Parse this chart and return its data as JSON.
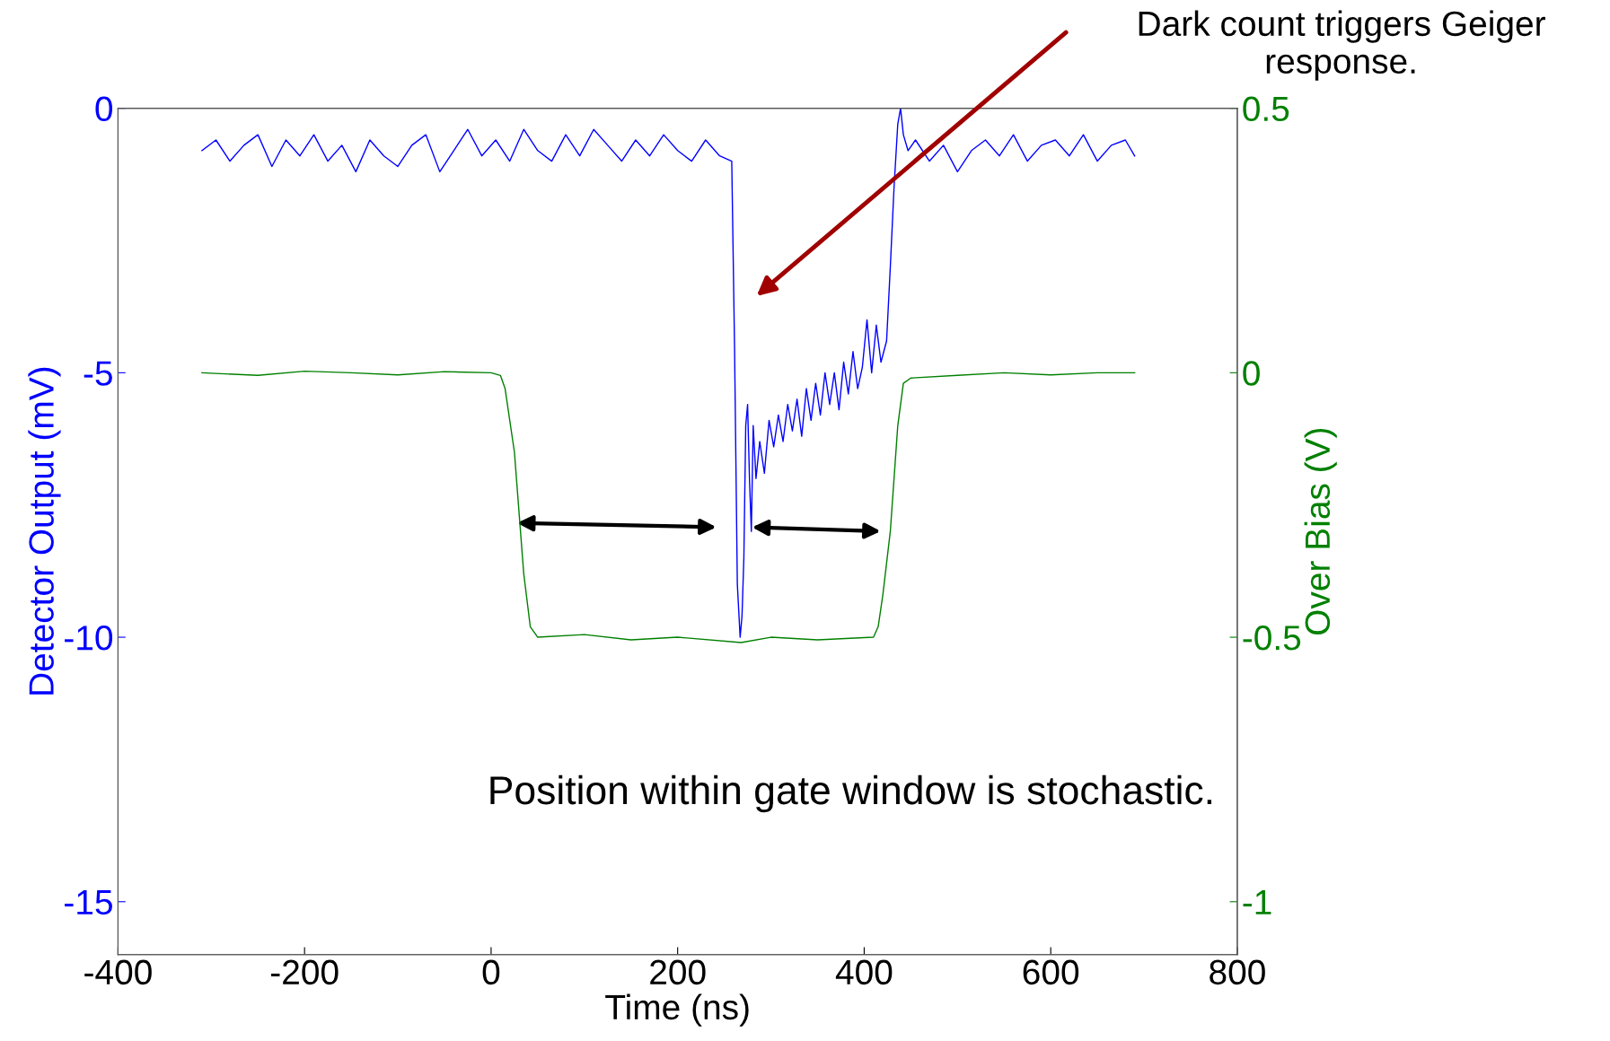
{
  "chart_data": {
    "type": "line",
    "xlabel": "Time (ns)",
    "ylabel": "Detector Output (mV)",
    "y2label": "Over Bias (V)",
    "xlim": [
      -400,
      800
    ],
    "xticks": [
      -400,
      -200,
      0,
      200,
      400,
      600,
      800
    ],
    "ylim": [
      -16,
      0
    ],
    "yticks": [
      -15,
      -10,
      -5,
      0
    ],
    "y2lim": [
      -1.1,
      0.5
    ],
    "y2ticks": [
      -1,
      -0.5,
      0,
      0.5
    ],
    "grid": false,
    "legend": false,
    "marker": "none",
    "line_style": "solid",
    "series": [
      {
        "color": "#0000ff",
        "axis": "y",
        "x": [
          -310,
          -295,
          -280,
          -265,
          -250,
          -235,
          -220,
          -205,
          -190,
          -175,
          -160,
          -145,
          -130,
          -115,
          -100,
          -85,
          -70,
          -55,
          -40,
          -25,
          -10,
          5,
          20,
          35,
          50,
          65,
          80,
          95,
          110,
          125,
          140,
          155,
          170,
          185,
          200,
          215,
          230,
          245,
          258,
          261,
          264,
          267,
          269,
          271,
          273,
          275,
          277,
          279,
          281,
          284,
          288,
          293,
          298,
          303,
          308,
          313,
          318,
          323,
          328,
          333,
          338,
          343,
          348,
          353,
          358,
          363,
          368,
          373,
          378,
          383,
          388,
          393,
          398,
          403,
          408,
          413,
          418,
          421,
          424,
          428,
          432,
          436,
          439,
          442,
          447,
          455,
          470,
          485,
          500,
          515,
          530,
          545,
          560,
          575,
          590,
          605,
          620,
          635,
          650,
          665,
          680,
          690
        ],
        "values": [
          -0.8,
          -0.6,
          -1.0,
          -0.7,
          -0.5,
          -1.1,
          -0.6,
          -0.9,
          -0.5,
          -1.0,
          -0.7,
          -1.2,
          -0.6,
          -0.9,
          -1.1,
          -0.7,
          -0.5,
          -1.2,
          -0.8,
          -0.4,
          -0.9,
          -0.6,
          -1.0,
          -0.4,
          -0.8,
          -1.0,
          -0.5,
          -0.9,
          -0.4,
          -0.7,
          -1.0,
          -0.6,
          -0.9,
          -0.5,
          -0.8,
          -1.0,
          -0.6,
          -0.9,
          -1.0,
          -4.5,
          -9.0,
          -10.0,
          -9.6,
          -8.5,
          -6.0,
          -5.6,
          -7.0,
          -8.0,
          -6.0,
          -7.0,
          -6.3,
          -6.9,
          -5.9,
          -6.4,
          -5.8,
          -6.3,
          -5.6,
          -6.1,
          -5.5,
          -6.2,
          -5.3,
          -5.9,
          -5.2,
          -5.8,
          -5.0,
          -5.6,
          -5.0,
          -5.7,
          -4.8,
          -5.4,
          -4.6,
          -5.3,
          -4.9,
          -4.0,
          -5.0,
          -4.1,
          -4.8,
          -4.6,
          -4.4,
          -3.0,
          -1.5,
          -0.3,
          0.0,
          -0.5,
          -0.8,
          -0.6,
          -1.0,
          -0.7,
          -1.2,
          -0.8,
          -0.6,
          -0.9,
          -0.5,
          -1.0,
          -0.7,
          -0.6,
          -0.9,
          -0.5,
          -1.0,
          -0.7,
          -0.6,
          -0.9
        ]
      },
      {
        "color": "#008000",
        "axis": "y2",
        "x": [
          -310,
          -250,
          -200,
          -150,
          -100,
          -50,
          0,
          10,
          15,
          25,
          35,
          42,
          50,
          100,
          150,
          200,
          268,
          300,
          350,
          410,
          415,
          420,
          428,
          436,
          442,
          450,
          500,
          550,
          600,
          650,
          690
        ],
        "values": [
          0.0,
          -0.005,
          0.003,
          0.0,
          -0.004,
          0.002,
          0.0,
          -0.005,
          -0.03,
          -0.15,
          -0.38,
          -0.48,
          -0.5,
          -0.495,
          -0.505,
          -0.5,
          -0.51,
          -0.5,
          -0.505,
          -0.5,
          -0.48,
          -0.42,
          -0.3,
          -0.1,
          -0.02,
          -0.01,
          -0.005,
          0.0,
          -0.004,
          0.0,
          0.0
        ]
      }
    ],
    "annotations": [
      "Dark count triggers Geiger\nresponse.",
      "Position within gate window is stochastic."
    ]
  }
}
